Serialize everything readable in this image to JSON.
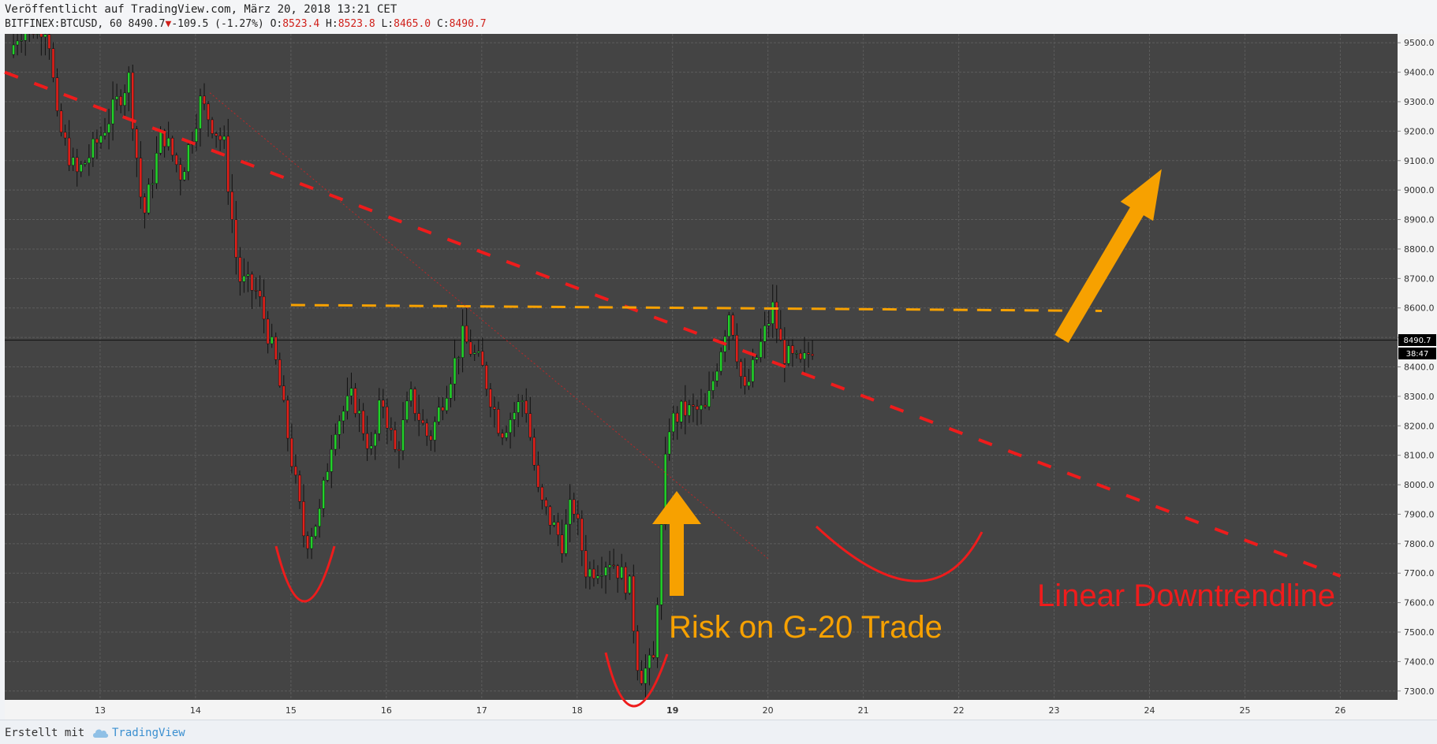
{
  "header": {
    "published": "Veröffentlicht auf TradingView.com, März 20, 2018 13:21 CET",
    "symbol": "BITFINEX:BTCUSD, 60",
    "last": "8490.7",
    "change": "-109.5 (-1.27%)",
    "open_label": "O:",
    "open": "8523.4",
    "high_label": "H:",
    "high": "8523.8",
    "low_label": "L:",
    "low": "8465.0",
    "close_label": "C:",
    "close": "8490.7",
    "down_marker": "▼"
  },
  "footer": {
    "credit": "Erstellt mit",
    "brand": "TradingView"
  },
  "price_badge": {
    "price": "8490.7",
    "countdown": "38:47"
  },
  "colors": {
    "up": "#22d02a",
    "down": "#e0201a",
    "wick": "#111111",
    "orange": "#f7a100",
    "red": "#ee1c1c",
    "bg": "#444444"
  },
  "annotations": {
    "risk_text": "Risk on G-20 Trade",
    "downtrend_text": "Linear Downtrendline"
  },
  "chart_data": {
    "type": "candlestick",
    "x_unit": "day of March 2018",
    "xlim": [
      12.0,
      26.6
    ],
    "ylim": [
      7270,
      9530
    ],
    "x_ticks": [
      13,
      14,
      15,
      16,
      17,
      18,
      19,
      20,
      21,
      22,
      23,
      24,
      25,
      26
    ],
    "y_ticks": [
      7300,
      7400,
      7500,
      7600,
      7700,
      7800,
      7900,
      8000,
      8100,
      8200,
      8300,
      8400,
      8500,
      8600,
      8700,
      8800,
      8900,
      9000,
      9100,
      9200,
      9300,
      9400,
      9500
    ],
    "y_tick_labels": [
      "7300.0",
      "7400.0",
      "7500.0",
      "7600.0",
      "7700.0",
      "7800.0",
      "7900.0",
      "8000.0",
      "8100.0",
      "8200.0",
      "8300.0",
      "8400.0",
      "8500.0",
      "8600.0",
      "8700.0",
      "8800.0",
      "8900.0",
      "9000.0",
      "9100.0",
      "9200.0",
      "9300.0",
      "9400.0",
      "9500.0"
    ],
    "last_price": 8490.7,
    "key_points": [
      [
        12.05,
        9460
      ],
      [
        12.15,
        9540
      ],
      [
        12.45,
        9560
      ],
      [
        12.55,
        9230
      ],
      [
        12.75,
        9050
      ],
      [
        12.95,
        9150
      ],
      [
        13.3,
        9380
      ],
      [
        13.45,
        8900
      ],
      [
        13.65,
        9200
      ],
      [
        13.85,
        9050
      ],
      [
        14.05,
        9300
      ],
      [
        14.3,
        9150
      ],
      [
        14.45,
        8700
      ],
      [
        14.65,
        8650
      ],
      [
        14.85,
        8400
      ],
      [
        15.15,
        7800
      ],
      [
        15.3,
        7900
      ],
      [
        15.45,
        8200
      ],
      [
        15.65,
        8300
      ],
      [
        15.85,
        8100
      ],
      [
        15.95,
        8300
      ],
      [
        16.1,
        8100
      ],
      [
        16.25,
        8300
      ],
      [
        16.45,
        8150
      ],
      [
        16.6,
        8300
      ],
      [
        16.8,
        8500
      ],
      [
        17.0,
        8400
      ],
      [
        17.2,
        8180
      ],
      [
        17.45,
        8300
      ],
      [
        17.6,
        7950
      ],
      [
        17.85,
        7800
      ],
      [
        17.95,
        7950
      ],
      [
        18.1,
        7700
      ],
      [
        18.35,
        7750
      ],
      [
        18.55,
        7650
      ],
      [
        18.65,
        7350
      ],
      [
        18.8,
        7400
      ],
      [
        18.95,
        8200
      ],
      [
        19.1,
        8250
      ],
      [
        19.35,
        8250
      ],
      [
        19.6,
        8600
      ],
      [
        19.75,
        8300
      ],
      [
        19.9,
        8450
      ],
      [
        20.05,
        8600
      ],
      [
        20.15,
        8450
      ],
      [
        20.35,
        8400
      ],
      [
        20.5,
        8490.7
      ]
    ],
    "trendlines": [
      {
        "name": "linear-downtrend",
        "style": "dashed",
        "color": "red",
        "points": [
          [
            12.0,
            9400
          ],
          [
            26.0,
            7690
          ]
        ]
      },
      {
        "name": "resistance",
        "style": "dashed",
        "color": "orange",
        "points": [
          [
            15.0,
            8610
          ],
          [
            23.5,
            8590
          ]
        ]
      },
      {
        "name": "thin-downtrend",
        "style": "dotted",
        "color": "red",
        "points": [
          [
            14.15,
            9330
          ],
          [
            20.0,
            7750
          ]
        ]
      }
    ]
  }
}
